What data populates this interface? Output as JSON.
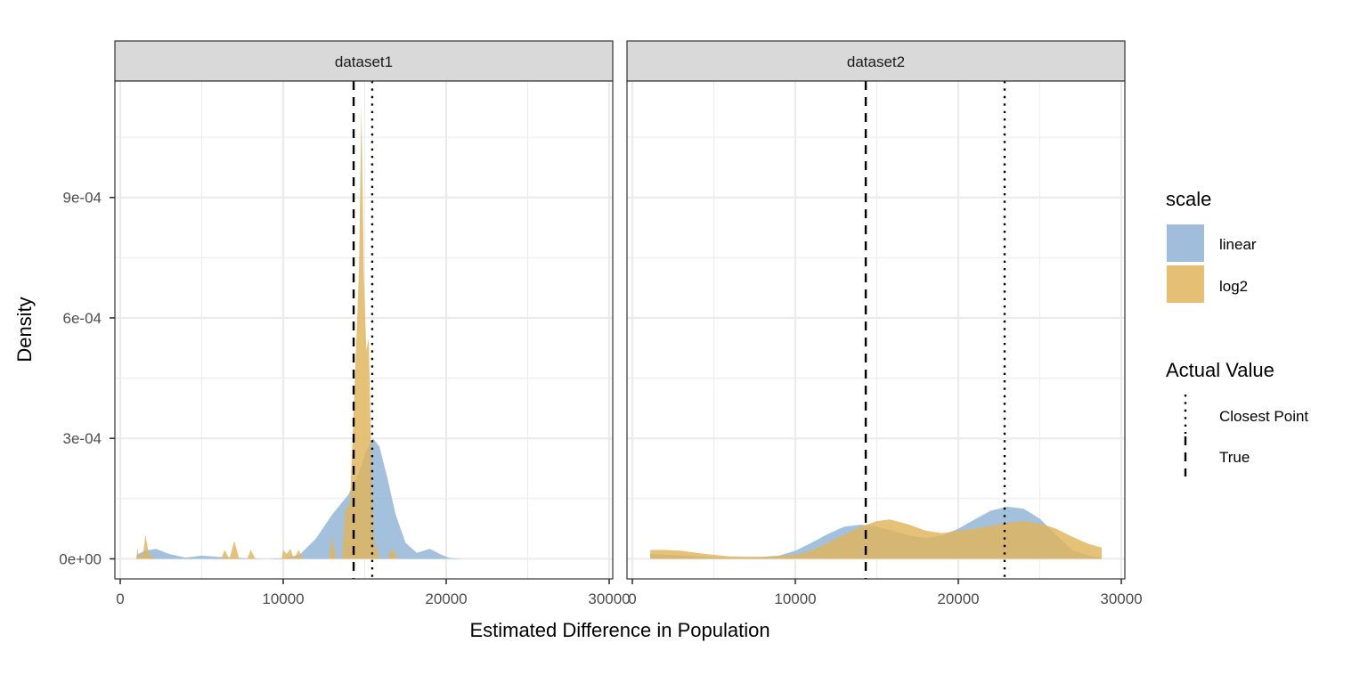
{
  "chart_data": {
    "type": "area",
    "subtype": "faceted density",
    "xlabel": "Estimated Difference in Population",
    "ylabel": "Density",
    "xlim": [
      0,
      30000
    ],
    "ylim": [
      -5e-05,
      0.00119
    ],
    "x_ticks": [
      0,
      10000,
      20000,
      30000
    ],
    "x_tick_labels": [
      "0",
      "10000",
      "20000",
      "30000"
    ],
    "y_ticks": [
      0,
      0.0003,
      0.0006,
      0.0009
    ],
    "y_tick_labels": [
      "0e+00",
      "3e-04",
      "6e-04",
      "9e-04"
    ],
    "grid": true,
    "legend_position": "right",
    "legends": [
      {
        "title": "scale",
        "entries": [
          {
            "label": "linear",
            "color": "#8fb3d5"
          },
          {
            "label": "log2",
            "color": "#e0b45c"
          }
        ]
      },
      {
        "title": "Actual Value",
        "entries": [
          {
            "label": "Closest Point",
            "linetype": "dotted"
          },
          {
            "label": "True",
            "linetype": "dashed"
          }
        ]
      }
    ],
    "panels": [
      {
        "strip": "dataset1",
        "vlines": [
          {
            "type": "True",
            "linetype": "dashed",
            "x": 14320
          },
          {
            "type": "Closest Point",
            "linetype": "dotted",
            "x": 15460
          }
        ],
        "series": [
          {
            "name": "linear",
            "points": [
              [
                1000,
                1e-05
              ],
              [
                1500,
                2e-05
              ],
              [
                2200,
                2.5e-05
              ],
              [
                3000,
                1.2e-05
              ],
              [
                4000,
                3e-06
              ],
              [
                5000,
                8e-06
              ],
              [
                6000,
                5e-06
              ],
              [
                7500,
                2e-06
              ],
              [
                9000,
                0.0
              ],
              [
                10000,
                2e-06
              ],
              [
                11000,
                1e-05
              ],
              [
                12000,
                5e-05
              ],
              [
                13000,
                0.00011
              ],
              [
                14000,
                0.00016
              ],
              [
                14600,
                0.00021
              ],
              [
                15100,
                0.00027
              ],
              [
                15500,
                0.0003
              ],
              [
                15900,
                0.00028
              ],
              [
                16400,
                0.0002
              ],
              [
                16900,
                0.00011
              ],
              [
                17500,
                4e-05
              ],
              [
                18200,
                1.5e-05
              ],
              [
                19000,
                2.5e-05
              ],
              [
                19600,
                1.2e-05
              ],
              [
                20200,
                2e-06
              ],
              [
                21000,
                0.0
              ]
            ]
          },
          {
            "name": "log2",
            "points": [
              [
                1000,
                0.0
              ],
              [
                1050,
                2.8e-05
              ],
              [
                1150,
                5e-06
              ],
              [
                1400,
                1.2e-05
              ],
              [
                1550,
                6e-05
              ],
              [
                1750,
                1.2e-05
              ],
              [
                2100,
                0.0
              ],
              [
                6200,
                0.0
              ],
              [
                6400,
                2.2e-05
              ],
              [
                6700,
                0.0
              ],
              [
                7000,
                4.5e-05
              ],
              [
                7300,
                0.0
              ],
              [
                7800,
                0.0
              ],
              [
                8000,
                2.2e-05
              ],
              [
                8300,
                0.0
              ],
              [
                9900,
                0.0
              ],
              [
                10000,
                2.2e-05
              ],
              [
                10200,
                1.2e-05
              ],
              [
                10450,
                2.5e-05
              ],
              [
                10650,
                0.0
              ],
              [
                10950,
                2.2e-05
              ],
              [
                11200,
                0.0
              ],
              [
                12800,
                0.0
              ],
              [
                13000,
                5.7e-05
              ],
              [
                13250,
                0.0
              ],
              [
                13600,
                0.0
              ],
              [
                13800,
                0.00012
              ],
              [
                14100,
                0.00014
              ],
              [
                14400,
                0.00045
              ],
              [
                14650,
                0.00072
              ],
              [
                14800,
                0.00113
              ],
              [
                14950,
                0.0007
              ],
              [
                15100,
                0.00052
              ],
              [
                15250,
                0.00055
              ],
              [
                15400,
                0.00025
              ],
              [
                15550,
                5e-05
              ],
              [
                15900,
                0.0
              ],
              [
                16400,
                0.0
              ],
              [
                16700,
                2.8e-05
              ],
              [
                17000,
                0.0
              ]
            ]
          }
        ]
      },
      {
        "strip": "dataset2",
        "vlines": [
          {
            "type": "True",
            "linetype": "dashed",
            "x": 14320
          },
          {
            "type": "Closest Point",
            "linetype": "dotted",
            "x": 22840
          }
        ],
        "series": [
          {
            "name": "linear",
            "points": [
              [
                1100,
                1.2e-05
              ],
              [
                3000,
                8e-06
              ],
              [
                5000,
                4e-06
              ],
              [
                7000,
                2e-06
              ],
              [
                9000,
                8e-06
              ],
              [
                10000,
                2e-05
              ],
              [
                11000,
                4e-05
              ],
              [
                12000,
                6.2e-05
              ],
              [
                13000,
                8e-05
              ],
              [
                14000,
                8.5e-05
              ],
              [
                15000,
                8e-05
              ],
              [
                16000,
                7e-05
              ],
              [
                17000,
                5.8e-05
              ],
              [
                18000,
                5.2e-05
              ],
              [
                19000,
                5.8e-05
              ],
              [
                20000,
                7.5e-05
              ],
              [
                21000,
                9.8e-05
              ],
              [
                22000,
                0.00012
              ],
              [
                23000,
                0.00013
              ],
              [
                24000,
                0.000125
              ],
              [
                25000,
                0.0001
              ],
              [
                26000,
                6e-05
              ],
              [
                27000,
                2.2e-05
              ],
              [
                28000,
                8e-06
              ],
              [
                28800,
                2e-06
              ]
            ]
          },
          {
            "name": "log2",
            "points": [
              [
                1100,
                2.2e-05
              ],
              [
                2000,
                2.2e-05
              ],
              [
                3000,
                2e-05
              ],
              [
                4500,
                1.2e-05
              ],
              [
                6000,
                6e-06
              ],
              [
                8000,
                5e-06
              ],
              [
                10000,
                1e-05
              ],
              [
                11000,
                2e-05
              ],
              [
                12000,
                4e-05
              ],
              [
                13000,
                6e-05
              ],
              [
                14000,
                8e-05
              ],
              [
                15000,
                9.4e-05
              ],
              [
                15800,
                9.8e-05
              ],
              [
                17000,
                8.5e-05
              ],
              [
                18000,
                7e-05
              ],
              [
                19000,
                6.4e-05
              ],
              [
                20000,
                7e-05
              ],
              [
                21000,
                7.5e-05
              ],
              [
                22000,
                8.2e-05
              ],
              [
                23000,
                9e-05
              ],
              [
                24000,
                9.4e-05
              ],
              [
                25000,
                8.8e-05
              ],
              [
                26000,
                7.5e-05
              ],
              [
                27000,
                5.5e-05
              ],
              [
                28000,
                3.7e-05
              ],
              [
                28800,
                2.8e-05
              ]
            ]
          }
        ]
      }
    ]
  }
}
